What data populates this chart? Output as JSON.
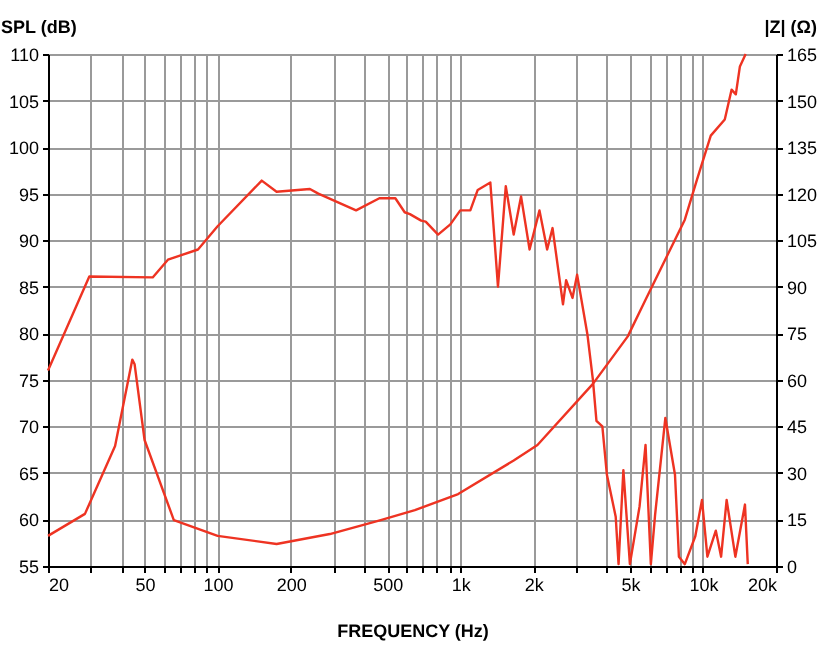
{
  "chart_data": {
    "type": "line",
    "xlabel": "FREQUENCY (Hz)",
    "ylabel": "SPL (dB)",
    "y2label": "|Z| (Ω)",
    "log": "x",
    "grid": true,
    "marker": "none",
    "line_style": "solid",
    "xlim": [
      20,
      20000
    ],
    "ylim": [
      55,
      110
    ],
    "y2lim": [
      0,
      165
    ],
    "xticks": [
      20,
      {
        "value": 30,
        "label": null
      },
      {
        "value": 40,
        "label": null
      },
      50,
      {
        "value": 60,
        "label": null
      },
      {
        "value": 70,
        "label": null
      },
      {
        "value": 80,
        "label": null
      },
      {
        "value": 90,
        "label": null
      },
      100,
      200,
      {
        "value": 300,
        "label": null
      },
      {
        "value": 400,
        "label": null
      },
      500,
      {
        "value": 600,
        "label": null
      },
      {
        "value": 700,
        "label": null
      },
      {
        "value": 800,
        "label": null
      },
      {
        "value": 900,
        "label": null
      },
      {
        "value": 1000,
        "label": "1k"
      },
      {
        "value": 2000,
        "label": "2k"
      },
      {
        "value": 3000,
        "label": null
      },
      {
        "value": 4000,
        "label": null
      },
      {
        "value": 5000,
        "label": "5k"
      },
      {
        "value": 6000,
        "label": null
      },
      {
        "value": 7000,
        "label": null
      },
      {
        "value": 8000,
        "label": null
      },
      {
        "value": 9000,
        "label": null
      },
      {
        "value": 10000,
        "label": "10k"
      },
      {
        "value": 20000,
        "label": "20k"
      }
    ],
    "yticks": [
      55,
      60,
      65,
      70,
      75,
      80,
      85,
      90,
      95,
      100,
      105,
      110
    ],
    "y2ticks": [
      0,
      15,
      30,
      45,
      60,
      75,
      90,
      105,
      120,
      135,
      150,
      165
    ],
    "series": [
      {
        "color": "#ee3322",
        "x": [
          20,
          29.6,
          54,
          62.4,
          83,
          100,
          152,
          175,
          240,
          260,
          372,
          464,
          540,
          590,
          620,
          690,
          720,
          810,
          910,
          1000,
          1100,
          1180,
          1330,
          1430,
          1540,
          1660,
          1780,
          1930,
          2120,
          2280,
          2400,
          2650,
          2730,
          2900,
          3030,
          3340,
          3520,
          3640,
          3850,
          4020,
          4370,
          4490,
          4700,
          5000,
          5480,
          5800,
          6100,
          6350,
          7000,
          7670,
          7960,
          8420,
          9300,
          9910,
          10430,
          11300,
          11880,
          12520,
          13600,
          14900,
          15300
        ],
        "values": [
          76,
          86.1,
          86,
          87.9,
          89,
          91.5,
          96.4,
          95.2,
          95.5,
          95,
          93.2,
          94.5,
          94.5,
          93,
          92.8,
          92.1,
          92,
          90.6,
          91.7,
          93.2,
          93.2,
          95.4,
          96.2,
          85,
          95.8,
          90.6,
          94.7,
          89,
          93.2,
          89,
          91.3,
          83.1,
          85.7,
          83.8,
          86.3,
          79.9,
          75,
          70.6,
          70,
          64.8,
          60.3,
          55.2,
          65.3,
          55.2,
          61.4,
          68,
          55.2,
          60.5,
          70.9,
          64.8,
          56,
          55.2,
          58.2,
          62.1,
          56,
          58.8,
          56,
          62.1,
          56,
          61.6,
          55.2
        ]
      },
      {
        "axis": "y2",
        "color": "#ee3322",
        "x": [
          20,
          28.4,
          37.8,
          44.5,
          45.5,
          50,
          66,
          100,
          175,
          290,
          470,
          650,
          980,
          1660,
          2080,
          3520,
          4900,
          5800,
          8420,
          9450,
          10770,
          12300,
          13120,
          13660,
          14200,
          15000
        ],
        "values": [
          9.7,
          16.8,
          38.7,
          66.5,
          65,
          40.6,
          14.8,
          9.7,
          7.1,
          10.3,
          14.8,
          18,
          23.2,
          34,
          39,
          58.7,
          74,
          85.8,
          111.6,
          124.5,
          138.7,
          143.9,
          153.5,
          152,
          161,
          165
        ]
      }
    ]
  }
}
